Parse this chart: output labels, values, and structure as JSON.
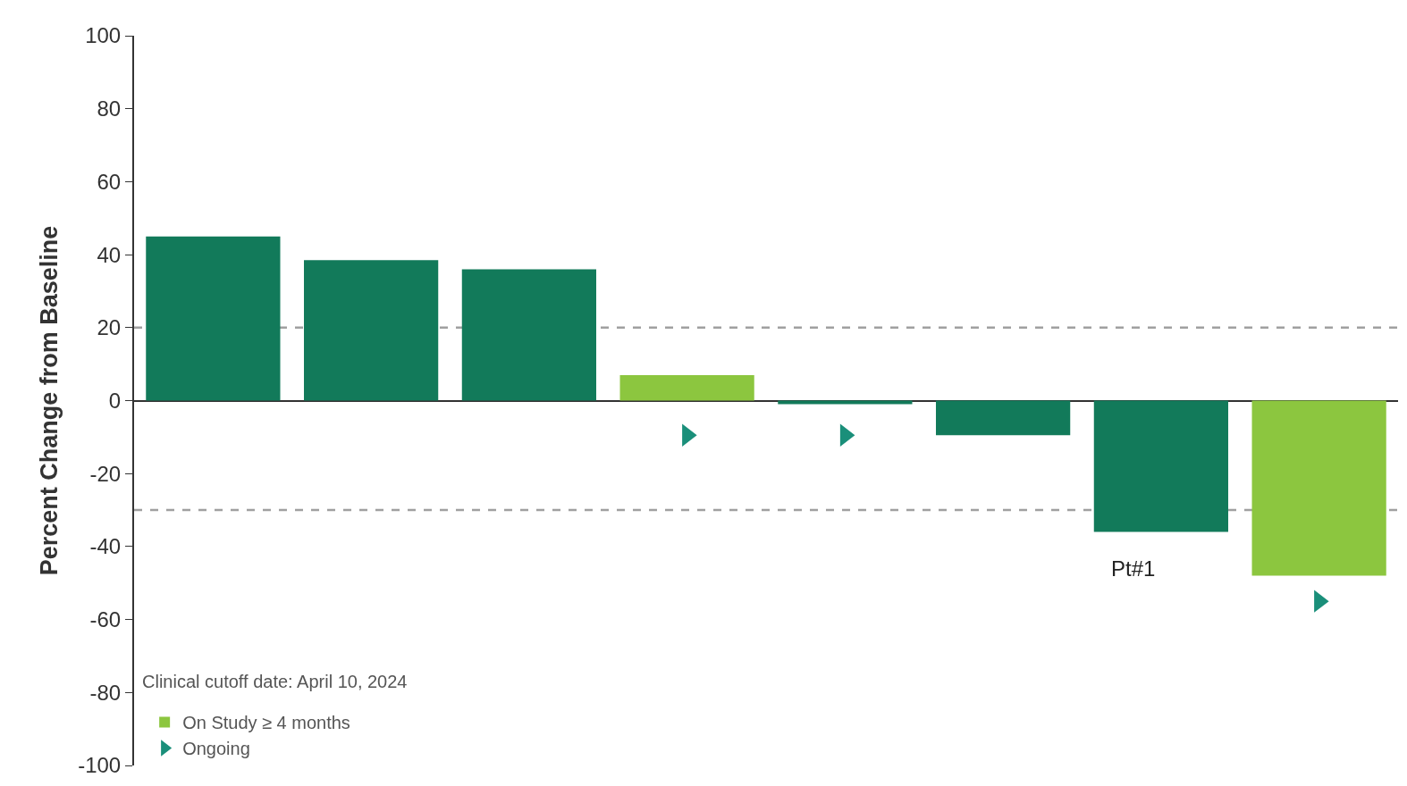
{
  "chart_data": {
    "type": "bar",
    "ylabel": "Percent Change from Baseline",
    "categories": [
      null,
      null,
      null,
      null,
      null,
      null,
      null,
      null
    ],
    "series": [
      {
        "color": "#127a5a",
        "values": [
          45,
          38.5,
          36,
          null,
          -1,
          -9.5,
          -36,
          null
        ]
      },
      {
        "name": "On Study ≥ 4 months",
        "color": "#8cc63f",
        "values": [
          null,
          null,
          null,
          7,
          null,
          null,
          null,
          -48
        ]
      },
      {
        "name": "Ongoing",
        "type": "scatter",
        "marker": "triangle",
        "color": "#1a8f7a",
        "values": [
          null,
          null,
          null,
          -9.5,
          -9.5,
          null,
          null,
          -55
        ]
      }
    ],
    "stacked": true,
    "ylim": [
      -100,
      100
    ],
    "yticks": [
      -100,
      -80,
      -60,
      -40,
      -20,
      0,
      20,
      40,
      60,
      80,
      100
    ],
    "ref_lines": [
      {
        "axis": "y",
        "value": 20,
        "color": "#a0a0a0",
        "line_style": "dashed"
      },
      {
        "axis": "y",
        "value": -30,
        "color": "#a0a0a0",
        "line_style": "dashed"
      }
    ],
    "annotations": [
      "Clinical cutoff date: April 10, 2024",
      "Pt#1"
    ],
    "legend": "bottom left",
    "grid": false
  }
}
